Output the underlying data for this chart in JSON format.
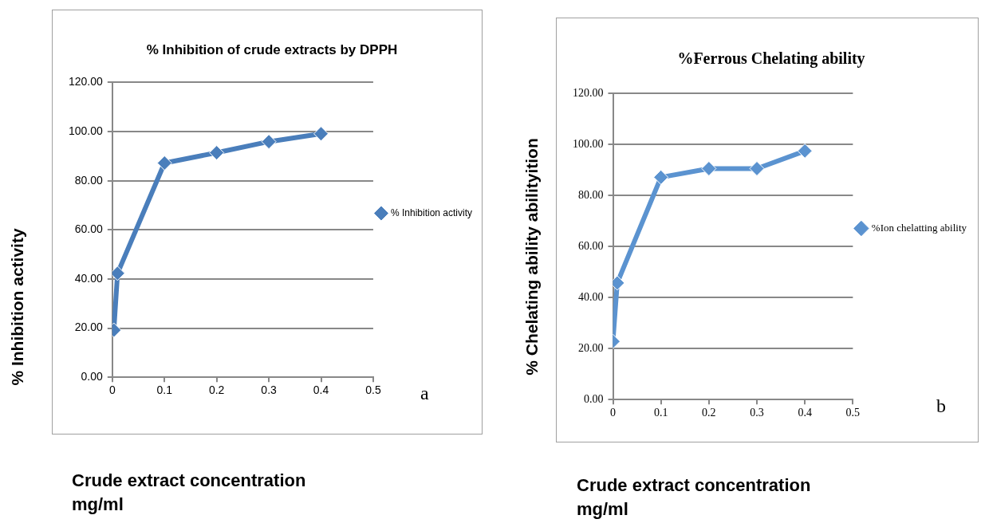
{
  "chart_data": [
    {
      "type": "line",
      "title": "% Inhibition of crude extracts by DPPH",
      "xlabel": "Crude extract concentration mg/ml",
      "ylabel": "% Inhibition activity",
      "series": [
        {
          "name": "% Inhibition activity",
          "color": "#4a7ebb",
          "x": [
            0.003,
            0.01,
            0.1,
            0.2,
            0.3,
            0.4
          ],
          "values": [
            19.2,
            42.3,
            87.2,
            91.4,
            95.9,
            99.1
          ]
        }
      ],
      "xlim": [
        0,
        0.5
      ],
      "xticks": [
        0,
        0.1,
        0.2,
        0.3,
        0.4,
        0.5
      ],
      "ylim": [
        0,
        120
      ],
      "yticks": [
        {
          "value": 0,
          "label": "0.00"
        },
        {
          "value": 20,
          "label": "20.00"
        },
        {
          "value": 40,
          "label": "40.00"
        },
        {
          "value": 60,
          "label": "60.00"
        },
        {
          "value": 80,
          "label": "80.00"
        },
        {
          "value": 100,
          "label": "100.00"
        },
        {
          "value": 120,
          "label": "120.00"
        }
      ],
      "grid": "y",
      "legend": "right",
      "marker": "diamond",
      "annotations": [
        "a"
      ]
    },
    {
      "type": "line",
      "title": "%Ferrous Chelating ability",
      "xlabel": "Crude extract concentration mg/ml",
      "ylabel": "% Chelating ability abilityition",
      "series": [
        {
          "name": "%Ion chelatting ability",
          "color": "#5b93d0",
          "x": [
            0,
            0.009,
            0.1,
            0.2,
            0.3,
            0.4
          ],
          "values": [
            22.8,
            45.7,
            87.1,
            90.5,
            90.5,
            97.4
          ]
        }
      ],
      "xlim": [
        0,
        0.5
      ],
      "xticks": [
        0,
        0.1,
        0.2,
        0.3,
        0.4,
        0.5
      ],
      "ylim": [
        0,
        120
      ],
      "yticks": [
        {
          "value": 0,
          "label": "0.00"
        },
        {
          "value": 20,
          "label": "20.00"
        },
        {
          "value": 40,
          "label": "40.00"
        },
        {
          "value": 60,
          "label": "60.00"
        },
        {
          "value": 80,
          "label": "80.00"
        },
        {
          "value": 100,
          "label": "100.00"
        },
        {
          "value": 120,
          "label": "120.00"
        }
      ],
      "grid": "y",
      "legend": "right",
      "marker": "diamond",
      "annotations": [
        "b"
      ]
    }
  ]
}
